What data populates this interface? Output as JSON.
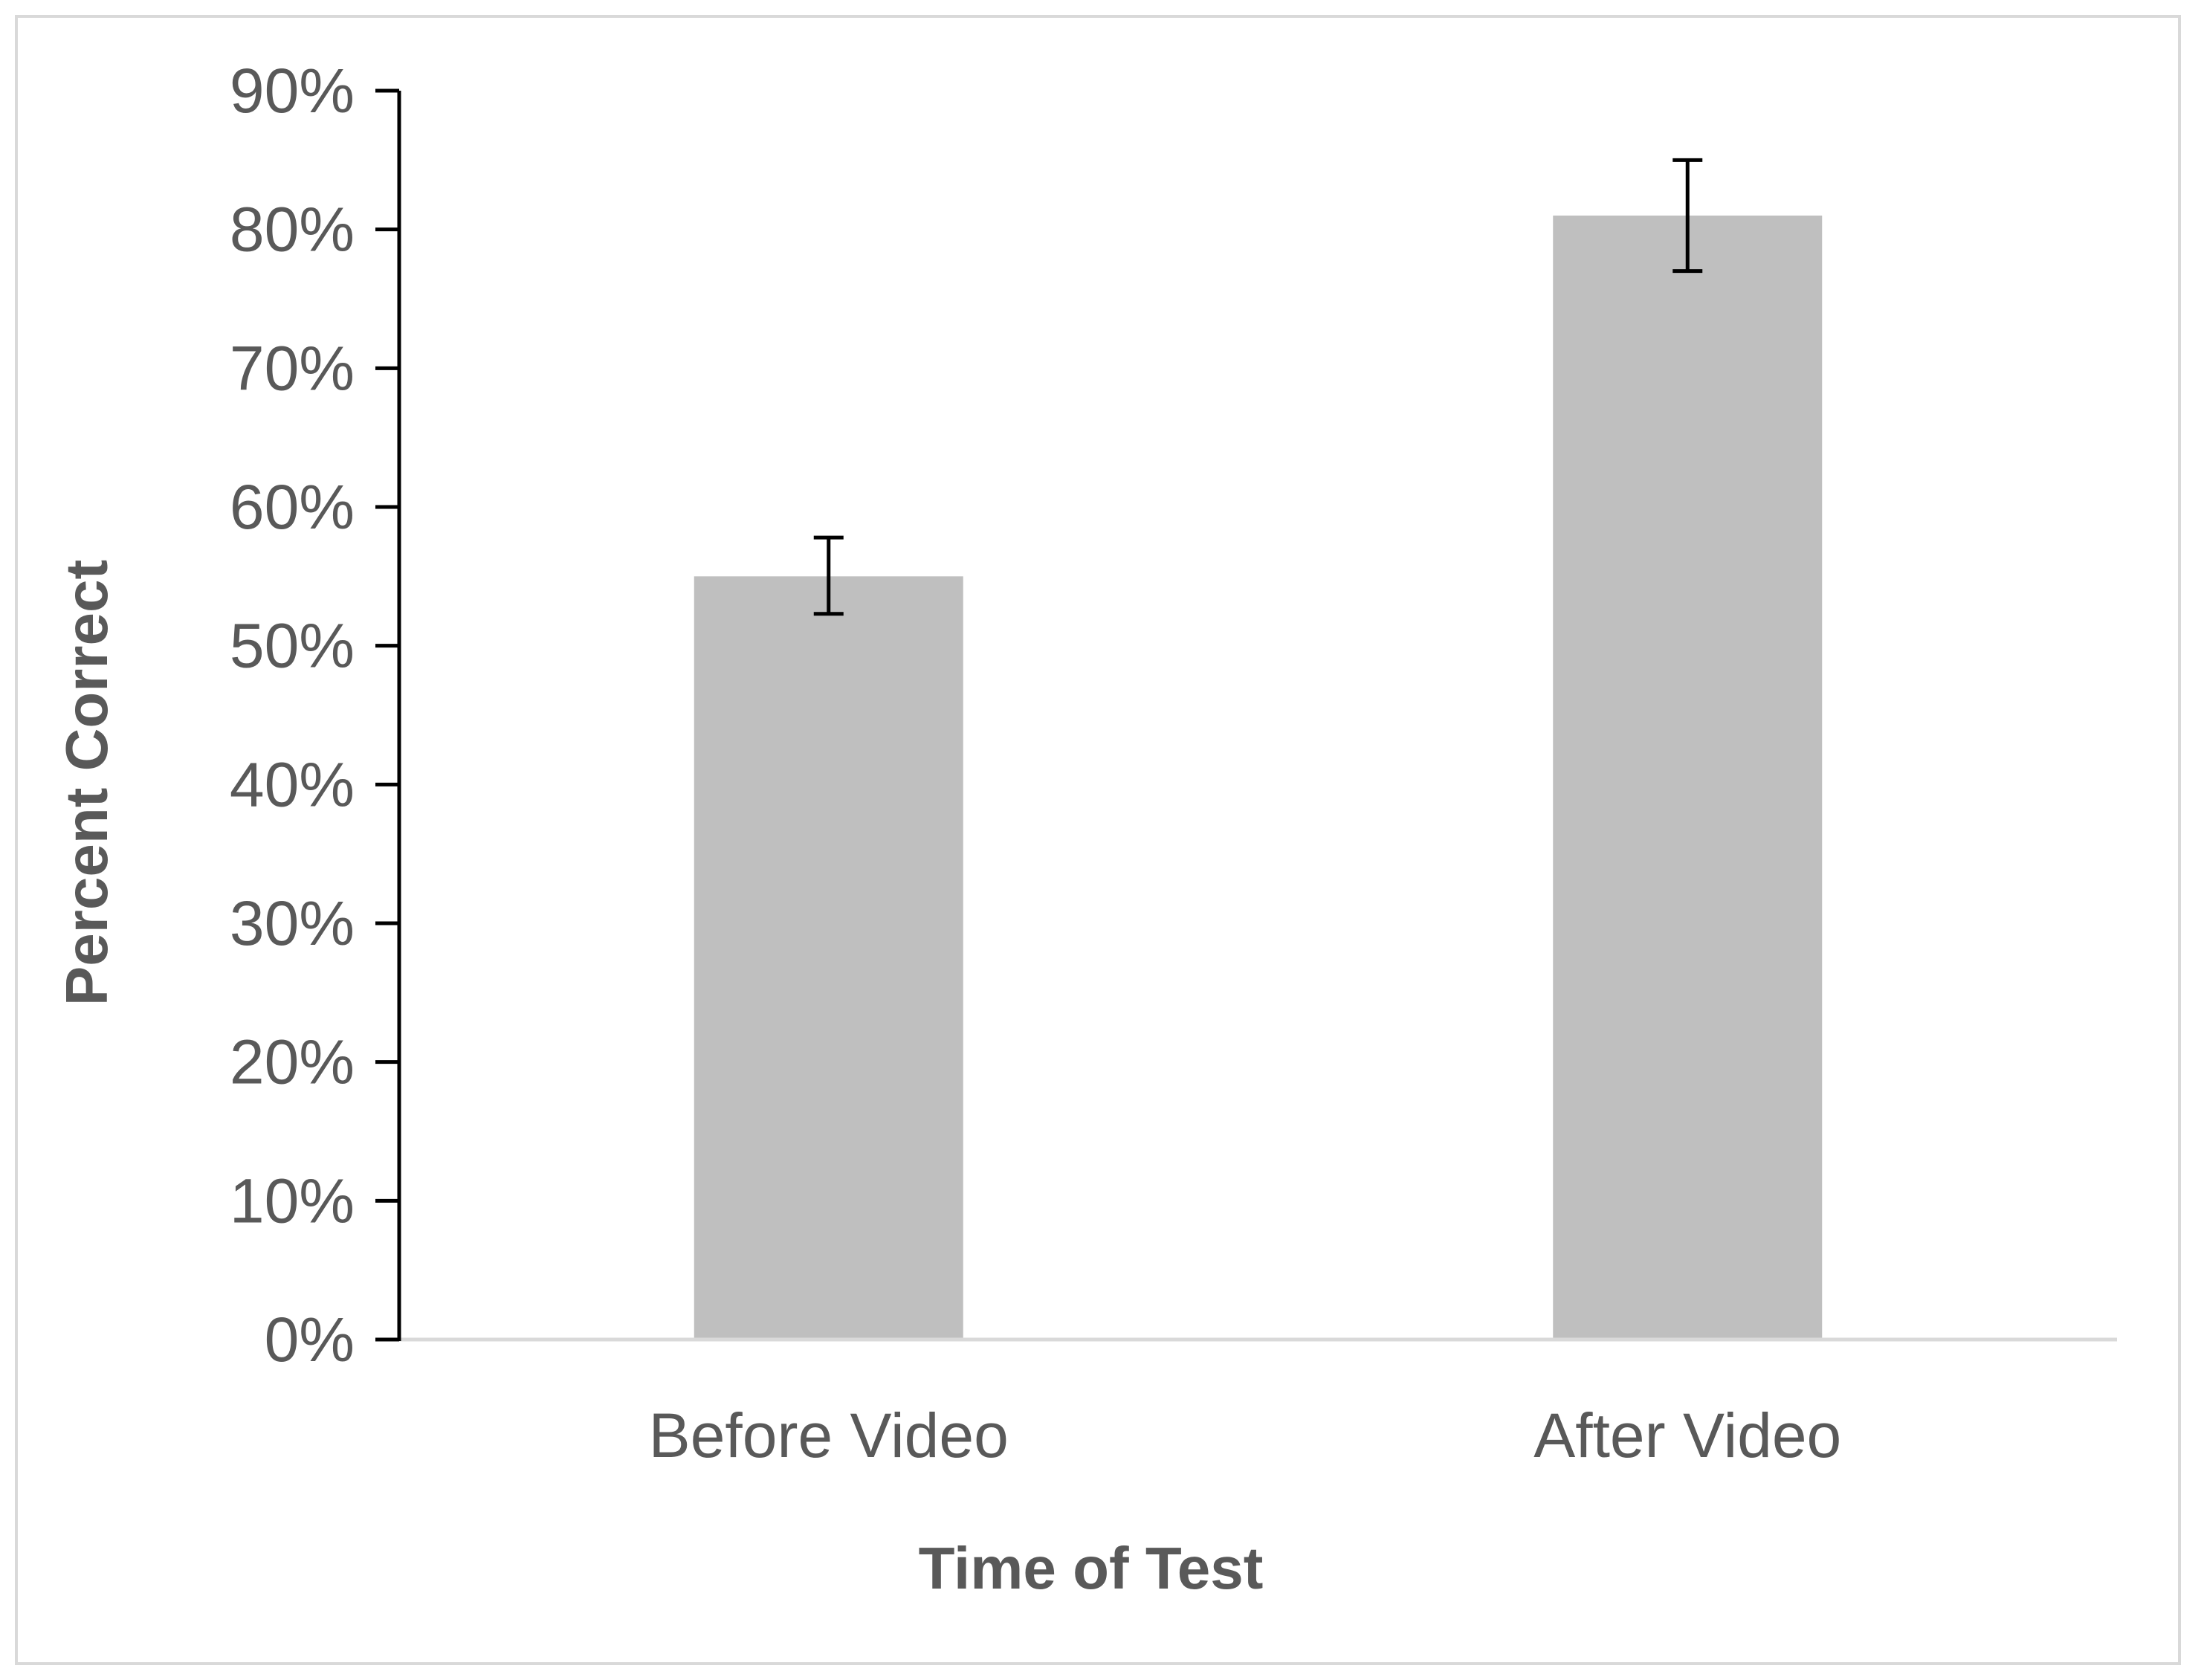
{
  "chart_data": {
    "type": "bar",
    "categories": [
      "Before Video",
      "After Video"
    ],
    "values": [
      55,
      81
    ],
    "error_bars": [
      {
        "low": 52.3,
        "high": 57.8
      },
      {
        "low": 77,
        "high": 85
      }
    ],
    "bar_color": "#bfbfbf",
    "title": "",
    "xlabel": "Time of Test",
    "ylabel": "Percent Correct",
    "ylim": [
      0,
      90
    ],
    "yticks": [
      0,
      10,
      20,
      30,
      40,
      50,
      60,
      70,
      80,
      90
    ],
    "ytick_labels": [
      "0%",
      "10%",
      "20%",
      "30%",
      "40%",
      "50%",
      "60%",
      "70%",
      "80%",
      "90%"
    ],
    "grid": false,
    "legend": "none"
  }
}
